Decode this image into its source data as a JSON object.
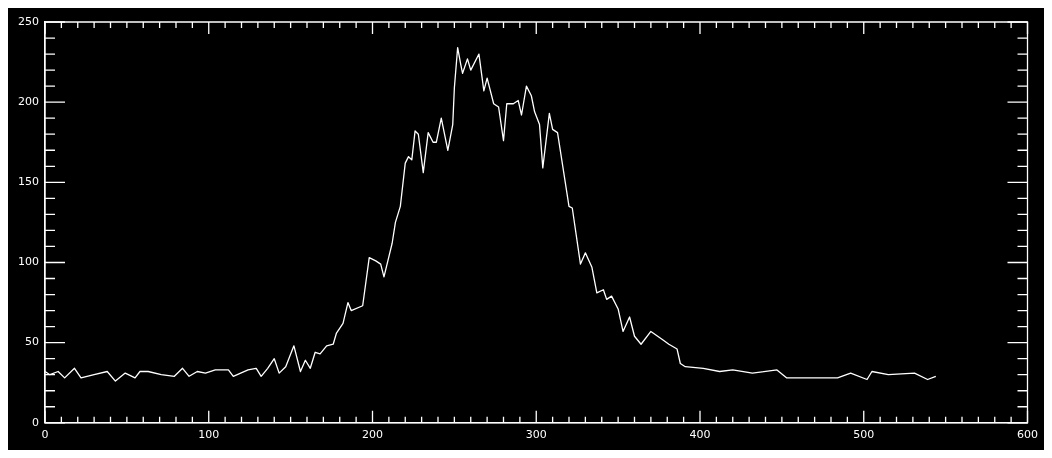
{
  "chart_data": {
    "type": "line",
    "x": [
      0,
      3,
      8,
      12,
      18,
      22,
      30,
      38,
      43,
      49,
      55,
      58,
      63,
      71,
      79,
      84,
      88,
      93,
      98,
      104,
      112,
      115,
      124,
      129,
      132,
      136,
      140,
      143,
      147,
      152,
      156,
      159,
      162,
      165,
      168,
      172,
      176,
      178,
      182,
      185,
      187,
      194,
      198,
      202,
      205,
      207,
      212,
      214,
      217,
      220,
      222,
      224,
      226,
      228,
      231,
      234,
      237,
      239,
      242,
      246,
      249,
      250,
      252,
      254,
      255,
      258,
      260,
      265,
      268,
      270,
      274,
      277,
      280,
      282,
      286,
      289,
      291,
      294,
      297,
      299,
      302,
      304,
      308,
      310,
      313,
      320,
      322,
      327,
      330,
      334,
      337,
      341,
      343,
      346,
      350,
      353,
      357,
      360,
      364,
      370,
      377,
      381,
      386,
      388,
      391,
      402,
      412,
      420,
      432,
      447,
      453,
      463,
      484,
      492,
      502,
      505,
      515,
      531,
      539,
      544
    ],
    "series": [
      {
        "color": "#ffffff",
        "values": [
          32,
          30,
          32,
          28,
          34,
          28,
          30,
          32,
          26,
          31,
          28,
          32,
          32,
          30,
          29,
          34,
          29,
          32,
          31,
          33,
          33,
          29,
          33,
          34,
          29,
          34,
          40,
          31,
          35,
          48,
          32,
          39,
          34,
          44,
          43,
          48,
          49,
          56,
          62,
          75,
          70,
          73,
          103,
          101,
          99,
          91,
          112,
          125,
          135,
          162,
          166,
          164,
          182,
          180,
          156,
          181,
          175,
          175,
          190,
          170,
          186,
          209,
          234,
          223,
          218,
          227,
          220,
          230,
          207,
          215,
          199,
          197,
          176,
          199,
          199,
          201,
          192,
          210,
          204,
          194,
          186,
          159,
          193,
          183,
          181,
          135,
          134,
          99,
          106,
          97,
          81,
          83,
          77,
          79,
          71,
          57,
          66,
          54,
          49,
          57,
          52,
          49,
          46,
          37,
          35,
          34,
          32,
          33,
          31,
          33,
          28,
          28,
          28,
          31,
          27,
          32,
          30,
          31,
          27,
          29
        ]
      }
    ],
    "xlim": [
      0,
      600
    ],
    "xticks": [
      0,
      {
        "value": 10,
        "label": null
      },
      {
        "value": 20,
        "label": null
      },
      {
        "value": 30,
        "label": null
      },
      {
        "value": 40,
        "label": null
      },
      {
        "value": 50,
        "label": null
      },
      {
        "value": 60,
        "label": null
      },
      {
        "value": 70,
        "label": null
      },
      {
        "value": 80,
        "label": null
      },
      {
        "value": 90,
        "label": null
      },
      100,
      {
        "value": 110,
        "label": null
      },
      {
        "value": 120,
        "label": null
      },
      {
        "value": 130,
        "label": null
      },
      {
        "value": 140,
        "label": null
      },
      {
        "value": 150,
        "label": null
      },
      {
        "value": 160,
        "label": null
      },
      {
        "value": 170,
        "label": null
      },
      {
        "value": 180,
        "label": null
      },
      {
        "value": 190,
        "label": null
      },
      200,
      {
        "value": 210,
        "label": null
      },
      {
        "value": 220,
        "label": null
      },
      {
        "value": 230,
        "label": null
      },
      {
        "value": 240,
        "label": null
      },
      {
        "value": 250,
        "label": null
      },
      {
        "value": 260,
        "label": null
      },
      {
        "value": 270,
        "label": null
      },
      {
        "value": 280,
        "label": null
      },
      {
        "value": 290,
        "label": null
      },
      300,
      {
        "value": 310,
        "label": null
      },
      {
        "value": 320,
        "label": null
      },
      {
        "value": 330,
        "label": null
      },
      {
        "value": 340,
        "label": null
      },
      {
        "value": 350,
        "label": null
      },
      {
        "value": 360,
        "label": null
      },
      {
        "value": 370,
        "label": null
      },
      {
        "value": 380,
        "label": null
      },
      {
        "value": 390,
        "label": null
      },
      400,
      {
        "value": 410,
        "label": null
      },
      {
        "value": 420,
        "label": null
      },
      {
        "value": 430,
        "label": null
      },
      {
        "value": 440,
        "label": null
      },
      {
        "value": 450,
        "label": null
      },
      {
        "value": 460,
        "label": null
      },
      {
        "value": 470,
        "label": null
      },
      {
        "value": 480,
        "label": null
      },
      {
        "value": 490,
        "label": null
      },
      500,
      {
        "value": 510,
        "label": null
      },
      {
        "value": 520,
        "label": null
      },
      {
        "value": 530,
        "label": null
      },
      {
        "value": 540,
        "label": null
      },
      {
        "value": 550,
        "label": null
      },
      {
        "value": 560,
        "label": null
      },
      {
        "value": 570,
        "label": null
      },
      {
        "value": 580,
        "label": null
      },
      {
        "value": 590,
        "label": null
      },
      600
    ],
    "ylim": [
      0,
      250
    ],
    "yticks": [
      0,
      {
        "value": 10,
        "label": null
      },
      {
        "value": 20,
        "label": null
      },
      {
        "value": 30,
        "label": null
      },
      {
        "value": 40,
        "label": null
      },
      50,
      {
        "value": 60,
        "label": null
      },
      {
        "value": 70,
        "label": null
      },
      {
        "value": 80,
        "label": null
      },
      {
        "value": 90,
        "label": null
      },
      100,
      {
        "value": 110,
        "label": null
      },
      {
        "value": 120,
        "label": null
      },
      {
        "value": 130,
        "label": null
      },
      {
        "value": 140,
        "label": null
      },
      150,
      {
        "value": 160,
        "label": null
      },
      {
        "value": 170,
        "label": null
      },
      {
        "value": 180,
        "label": null
      },
      {
        "value": 190,
        "label": null
      },
      200,
      {
        "value": 210,
        "label": null
      },
      {
        "value": 220,
        "label": null
      },
      {
        "value": 230,
        "label": null
      },
      {
        "value": 240,
        "label": null
      },
      250
    ],
    "grid": false,
    "legend": false,
    "marker": "none",
    "line_style": "solid"
  }
}
